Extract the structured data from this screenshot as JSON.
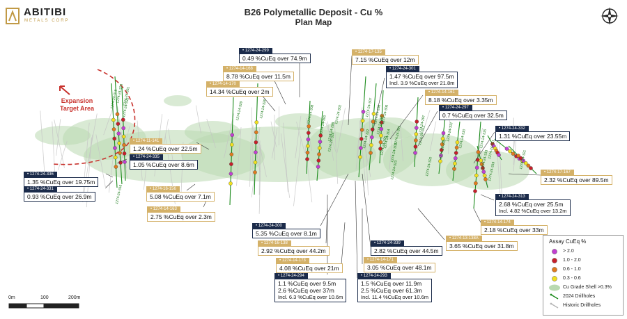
{
  "header": {
    "title": "B26 Polymetallic Deposit - Cu %",
    "subtitle": "Plan Map"
  },
  "logo": {
    "name": "ABITIBI",
    "tagline": "METALS CORP"
  },
  "compass": {
    "icon": "compass-rose-icon"
  },
  "expansion": {
    "line1": "Expansion",
    "line2": "Target Area"
  },
  "callouts": [
    {
      "id": "1274-24-299",
      "style": "dark",
      "lines": [
        "0.49 %CuEq over 74.9m"
      ]
    },
    {
      "id": "1274-14-168",
      "style": "gold",
      "lines": [
        "8.78 %CuEq over 11.5m"
      ]
    },
    {
      "id": "1274-14-170",
      "style": "gold",
      "lines": [
        "14.34 %CuEq over 2m"
      ]
    },
    {
      "id": "1274-17-135",
      "style": "gold",
      "lines": [
        "7.15 %CuEq over 12m"
      ]
    },
    {
      "id": "1274-24-301",
      "style": "dark",
      "lines": [
        "1.47 %CuEq over 97.5m",
        "Incl. 3.9 %CuEq over 21.8m"
      ]
    },
    {
      "id": "1274-14-161",
      "style": "gold",
      "lines": [
        "8.18 %CuEq over 3.35m"
      ]
    },
    {
      "id": "1274-24-297",
      "style": "dark",
      "lines": [
        "0.7 %CuEq over 32.5m"
      ]
    },
    {
      "id": "1274-24-332",
      "style": "dark",
      "lines": [
        "1.31 %CuEq over 23.55m"
      ]
    },
    {
      "id": "1274-11-141",
      "style": "gold",
      "lines": [
        "1.24 %CuEq over 22.5m"
      ]
    },
    {
      "id": "1274-24-335",
      "style": "dark",
      "lines": [
        "1.05 %CuEq over 8.6m"
      ]
    },
    {
      "id": "1274-24-336",
      "style": "dark",
      "lines": [
        "1.35 %CuEq over 19.75m"
      ]
    },
    {
      "id": "1274-24-331",
      "style": "dark",
      "lines": [
        "0.93 %CuEq over 26.9m"
      ]
    },
    {
      "id": "1274-16-156",
      "style": "gold",
      "lines": [
        "5.08 %CuEq over 7.1m"
      ]
    },
    {
      "id": "1274-14-163",
      "style": "gold",
      "lines": [
        "2.75 %CuEq over 2.3m"
      ]
    },
    {
      "id": "1274-17-167",
      "style": "gold",
      "lines": [
        "2.32 %CuEq over 89.5m"
      ]
    },
    {
      "id": "1274-24-313",
      "style": "dark",
      "lines": [
        "2.68 %CuEq over 25.5m",
        "Incl. 4.82 %CuEq over 13.2m"
      ]
    },
    {
      "id": "1274-14-174",
      "style": "gold",
      "lines": [
        "2.18 %CuEq over 33m"
      ]
    },
    {
      "id": "1274-24-300",
      "style": "dark",
      "lines": [
        "5.35 %CuEq over 8.1m"
      ]
    },
    {
      "id": "1274-16-138",
      "style": "gold",
      "lines": [
        "2.92 %CuEq over 44.2m"
      ]
    },
    {
      "id": "1274-24-339",
      "style": "dark",
      "lines": [
        "2.82 %CuEq over 44.5m"
      ]
    },
    {
      "id": "1274-13-138A",
      "style": "gold",
      "lines": [
        "3.65 %CuEq over 31.8m"
      ]
    },
    {
      "id": "1274-14-173",
      "style": "gold",
      "lines": [
        "4.08 %CuEq over 21m"
      ]
    },
    {
      "id": "1274-14-171",
      "style": "gold",
      "lines": [
        "3.05 %CuEq over 48.1m"
      ]
    },
    {
      "id": "1274-24-294",
      "style": "dark",
      "lines": [
        "1.1 %CuEq over 9.5m",
        "2.6 %CuEq over 37m",
        "Incl. 6.3 %CuEq over 10.6m"
      ]
    },
    {
      "id": "1274-24-293",
      "style": "dark",
      "lines": [
        "1.5 %CuEq over 11.9m",
        "2.5 %CuEq over 61.3m",
        "Incl. 11.4 %CuEq over 10.6m"
      ]
    }
  ],
  "hole_labels": [
    "1274-24-318",
    "1274-24-333",
    "1274-24-331",
    "1274-24-335",
    "1274-24-329",
    "1274-24-326",
    "1274-24-308",
    "1274-24-300",
    "1274-24-302",
    "1274-24-324",
    "1274-24-307",
    "1274-24-296",
    "1274-24-306",
    "1274-24-304",
    "1274-24-303",
    "1274-24-295",
    "1274-24-297",
    "1274-24-317",
    "1274-24-310",
    "1274-24-315",
    "1274-24-311",
    "1274-24-321",
    "1274-24-313",
    "1274-24-309",
    "1274-24-299",
    "1274-24-322",
    "1274-24-301",
    "1274-24-305",
    "1274-24-312",
    "1274-24-320",
    "1274-24-323",
    "1274-24-319",
    "1274-24-316"
  ],
  "legend": {
    "title": "Assay CuEq %",
    "items": [
      {
        "label": "> 2.0",
        "color": "#c23fd1",
        "kind": "dot"
      },
      {
        "label": "1.0 - 2.0",
        "color": "#c71f2a",
        "kind": "dot"
      },
      {
        "label": "0.6 - 1.0",
        "color": "#e07a1e",
        "kind": "dot"
      },
      {
        "label": "0.3 - 0.6",
        "color": "#f2e11e",
        "kind": "dot"
      },
      {
        "label": "Cu Grade Shell >0.3%",
        "color": "#b9d9b0",
        "kind": "shell"
      },
      {
        "label": "2024 Drillholes",
        "color": "#1a8a1a",
        "kind": "line"
      },
      {
        "label": "Historic Drillholes",
        "color": "#b5b5b5",
        "kind": "line"
      }
    ]
  },
  "scale": {
    "labels": [
      "0m",
      "100",
      "200m"
    ]
  },
  "colors": {
    "dark": "#1b2b4a",
    "gold": "#d4b168",
    "shell": "#b9d9b0",
    "hole2024": "#1a8a1a",
    "historic": "#c4c4c4",
    "expansion": "#c8312c"
  }
}
